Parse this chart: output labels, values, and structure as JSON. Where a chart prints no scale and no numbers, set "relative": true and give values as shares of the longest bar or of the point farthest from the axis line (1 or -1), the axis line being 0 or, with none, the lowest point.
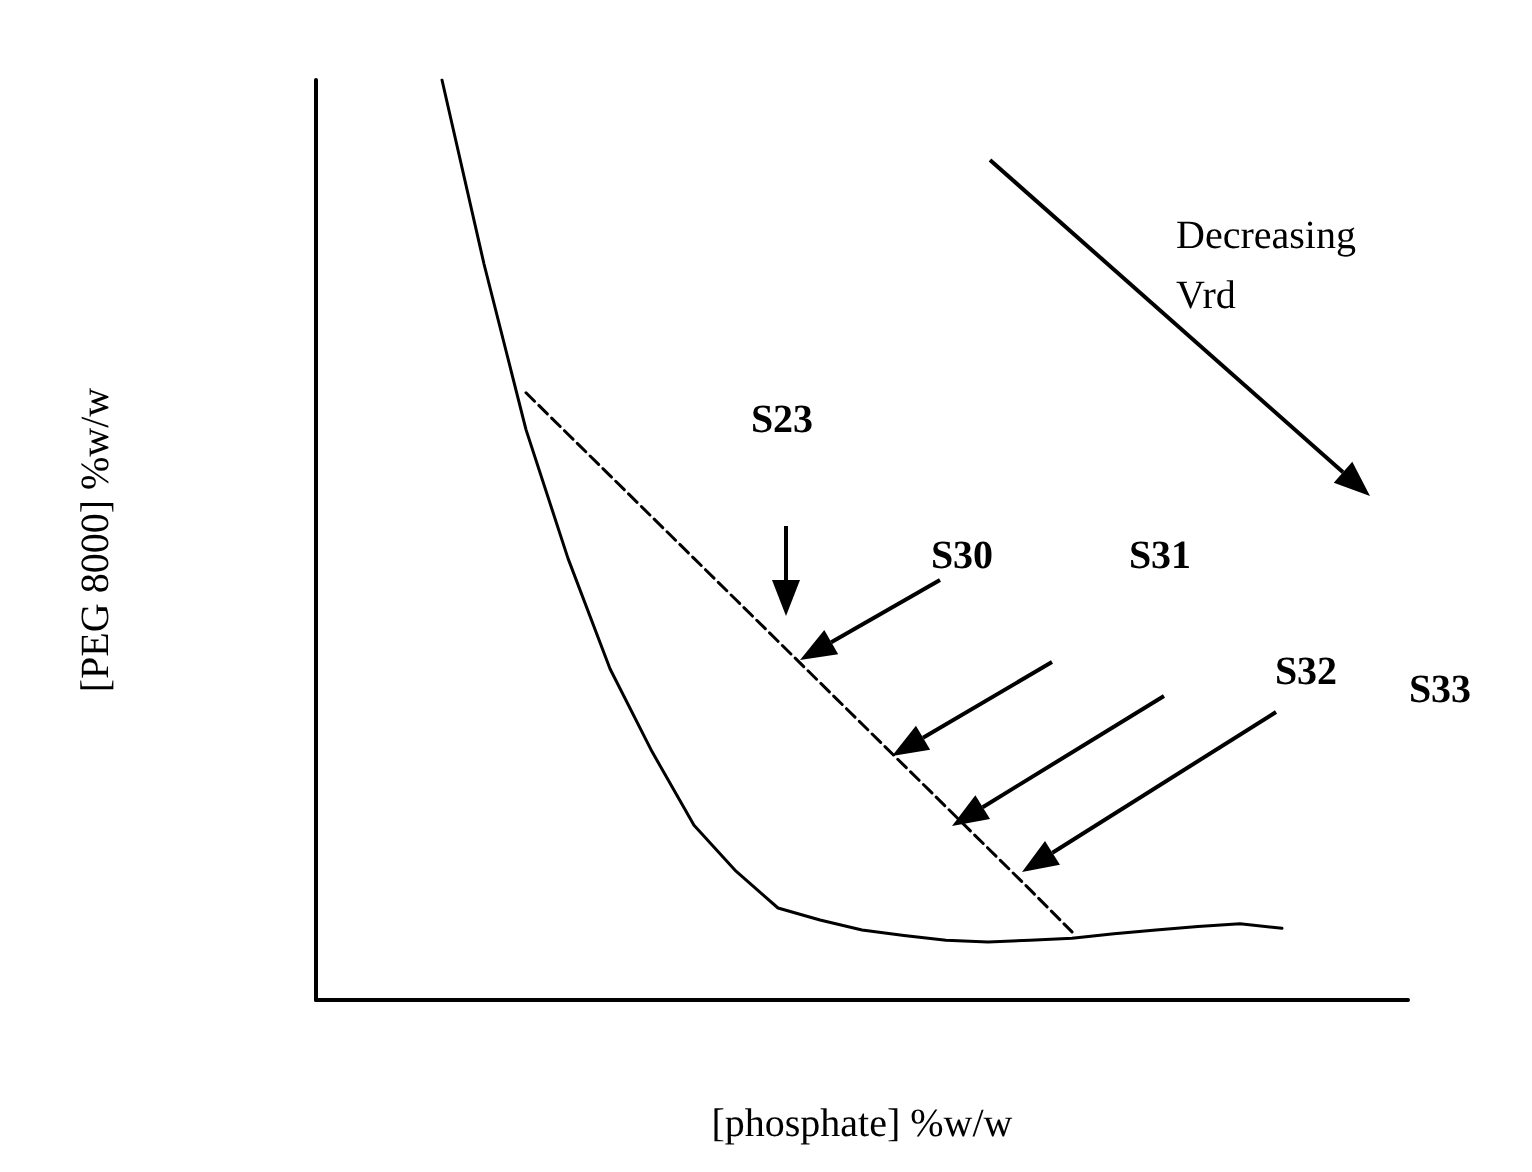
{
  "chart_data": {
    "type": "line",
    "relative": true,
    "xlabel": "[phosphate] %w/w",
    "ylabel": "[PEG 8000] %w/w",
    "categories": [
      null,
      null,
      null,
      null,
      null,
      null,
      null,
      null,
      null,
      null,
      null,
      null,
      null,
      null,
      null,
      null,
      null,
      null,
      null,
      null,
      null,
      null,
      null,
      null,
      null,
      null,
      null
    ],
    "series": [
      {
        "color": "#000000",
        "line_style": "solid",
        "values": [
          null,
          null,
          null,
          1.0,
          0.8,
          0.62,
          0.48,
          0.36,
          0.27,
          0.19,
          0.14,
          0.1,
          0.087,
          0.076,
          0.07,
          0.065,
          0.063,
          0.065,
          0.067,
          0.072,
          0.076,
          0.08,
          0.083,
          0.078,
          null,
          null,
          null
        ]
      },
      {
        "color": "#000000",
        "line_style": "dashed",
        "values": [
          null,
          null,
          null,
          null,
          null,
          0.66,
          0.615,
          0.57,
          0.525,
          0.48,
          0.435,
          0.39,
          0.345,
          0.3,
          0.255,
          0.21,
          0.165,
          0.12,
          0.074,
          null,
          null,
          null,
          null,
          null,
          null,
          null,
          null
        ]
      }
    ],
    "marker": "none",
    "grid": false,
    "annotations": [
      "S23",
      "S30",
      "S31",
      "S32",
      "S33",
      "Decreasing\nVrd"
    ]
  }
}
